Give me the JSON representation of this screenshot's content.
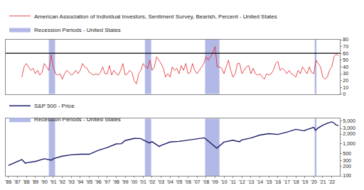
{
  "chart_data": [
    {
      "type": "line",
      "x": [
        1987.5,
        1987.75,
        1988,
        1988.25,
        1988.5,
        1988.75,
        1989,
        1989.25,
        1989.5,
        1989.75,
        1990,
        1990.25,
        1990.5,
        1990.75,
        1991,
        1991.25,
        1991.5,
        1991.75,
        1992,
        1992.25,
        1992.5,
        1992.75,
        1993,
        1993.25,
        1993.5,
        1993.75,
        1994,
        1994.25,
        1994.5,
        1994.75,
        1995,
        1995.25,
        1995.5,
        1995.75,
        1996,
        1996.25,
        1996.5,
        1996.75,
        1997,
        1997.25,
        1997.5,
        1997.75,
        1998,
        1998.25,
        1998.5,
        1998.75,
        1999,
        1999.25,
        1999.5,
        1999.75,
        2000,
        2000.25,
        2000.5,
        2000.75,
        2001,
        2001.25,
        2001.5,
        2001.75,
        2002,
        2002.25,
        2002.5,
        2002.75,
        2003,
        2003.25,
        2003.5,
        2003.75,
        2004,
        2004.25,
        2004.5,
        2004.75,
        2005,
        2005.25,
        2005.5,
        2005.75,
        2006,
        2006.25,
        2006.5,
        2006.75,
        2007,
        2007.25,
        2007.5,
        2007.75,
        2008,
        2008.25,
        2008.5,
        2008.75,
        2009,
        2009.25,
        2009.5,
        2009.75,
        2010,
        2010.25,
        2010.5,
        2010.75,
        2011,
        2011.25,
        2011.5,
        2011.75,
        2012,
        2012.25,
        2012.5,
        2012.75,
        2013,
        2013.25,
        2013.5,
        2013.75,
        2014,
        2014.25,
        2014.5,
        2014.75,
        2015,
        2015.25,
        2015.5,
        2015.75,
        2016,
        2016.25,
        2016.5,
        2016.75,
        2017,
        2017.25,
        2017.5,
        2017.75,
        2018,
        2018.25,
        2018.5,
        2018.75,
        2019,
        2019.25,
        2019.5,
        2019.75,
        2020,
        2020.25,
        2020.5,
        2020.75,
        2021,
        2021.25,
        2021.5,
        2021.75,
        2022,
        2022.25,
        2022.5,
        2022.75
      ],
      "series": [
        {
          "name": "American Association of Individual Investors, Sentiment Survey, Bearish, Percent - United States",
          "color": "#e3242b",
          "values": [
            25,
            40,
            45,
            40,
            35,
            38,
            30,
            35,
            28,
            32,
            45,
            40,
            35,
            58,
            40,
            30,
            28,
            30,
            22,
            30,
            35,
            32,
            28,
            30,
            35,
            30,
            35,
            45,
            40,
            38,
            32,
            30,
            28,
            30,
            28,
            32,
            40,
            30,
            30,
            42,
            28,
            35,
            30,
            28,
            35,
            45,
            28,
            30,
            35,
            32,
            20,
            15,
            30,
            35,
            45,
            40,
            38,
            50,
            35,
            40,
            55,
            50,
            45,
            38,
            25,
            30,
            25,
            40,
            35,
            38,
            30,
            42,
            35,
            45,
            30,
            32,
            45,
            35,
            30,
            35,
            40,
            45,
            55,
            50,
            55,
            60,
            70,
            40,
            40,
            38,
            30,
            40,
            50,
            35,
            25,
            30,
            45,
            45,
            30,
            35,
            40,
            42,
            30,
            38,
            30,
            28,
            30,
            25,
            22,
            30,
            28,
            30,
            35,
            45,
            48,
            35,
            38,
            35,
            30,
            35,
            30,
            28,
            25,
            35,
            30,
            40,
            35,
            30,
            40,
            32,
            30,
            50,
            45,
            40,
            25,
            22,
            25,
            35,
            40,
            55,
            59,
            56
          ]
        }
      ],
      "recessions": {
        "name": "Recession Periods - United States",
        "color": "#b3b9e6",
        "periods": [
          [
            1990.5,
            1991.2
          ],
          [
            2001.2,
            2001.9
          ],
          [
            2007.9,
            2009.5
          ],
          [
            2020.1,
            2020.3
          ]
        ]
      },
      "hline": 60,
      "xlim": [
        1985.7,
        2022.9
      ],
      "ylim": [
        0,
        80
      ],
      "yticks": [
        0,
        10,
        20,
        30,
        40,
        50,
        60,
        70,
        80
      ],
      "grid": false,
      "tick_labels": "y"
    },
    {
      "type": "line",
      "x": [
        1986,
        1987.5,
        1987.9,
        1988,
        1989,
        1990,
        1990.8,
        1991,
        1992,
        1993,
        1994,
        1995,
        1996,
        1997,
        1998,
        1998.6,
        1999,
        2000,
        2000.7,
        2001,
        2001.7,
        2002,
        2002.8,
        2003,
        2004,
        2005,
        2006,
        2007,
        2007.8,
        2008,
        2008.8,
        2009.2,
        2010,
        2011,
        2011.7,
        2012,
        2013,
        2014,
        2015,
        2016,
        2017,
        2018,
        2018.95,
        2019,
        2020,
        2020.2,
        2020.5,
        2021,
        2021.5,
        2022,
        2022.25,
        2022.5,
        2022.75
      ],
      "series": [
        {
          "name": "S&P 500 - Price",
          "color": "#1c1c6b",
          "values": [
            210,
            320,
            245,
            255,
            280,
            340,
            305,
            340,
            410,
            450,
            470,
            470,
            620,
            760,
            980,
            1000,
            1250,
            1460,
            1450,
            1300,
            1050,
            1150,
            820,
            880,
            1130,
            1180,
            1280,
            1420,
            1520,
            1380,
            900,
            720,
            1120,
            1280,
            1150,
            1310,
            1500,
            1850,
            2050,
            1940,
            2280,
            2800,
            2500,
            2600,
            3230,
            2580,
            3100,
            3750,
            4300,
            4770,
            4400,
            3800,
            3700
          ]
        }
      ],
      "recessions": {
        "name": "Recession Periods - United States",
        "color": "#b3b9e6",
        "periods": [
          [
            1990.5,
            1991.2
          ],
          [
            2001.2,
            2001.9
          ],
          [
            2007.9,
            2009.5
          ],
          [
            2020.1,
            2020.3
          ]
        ]
      },
      "log": "y",
      "xlim": [
        1985.7,
        2022.9
      ],
      "xticks": [
        {
          "value": 1986,
          "label": "'86"
        },
        {
          "value": 1987,
          "label": "'87"
        },
        {
          "value": 1988,
          "label": "'88"
        },
        {
          "value": 1989,
          "label": "'89"
        },
        {
          "value": 1990,
          "label": "'90"
        },
        {
          "value": 1991,
          "label": "'91"
        },
        {
          "value": 1992,
          "label": "'92"
        },
        {
          "value": 1993,
          "label": "'93"
        },
        {
          "value": 1994,
          "label": "'94"
        },
        {
          "value": 1995,
          "label": "'95"
        },
        {
          "value": 1996,
          "label": "'96"
        },
        {
          "value": 1997,
          "label": "'97"
        },
        {
          "value": 1998,
          "label": "'98"
        },
        {
          "value": 1999,
          "label": "'99"
        },
        {
          "value": 2000,
          "label": "'00"
        },
        {
          "value": 2001,
          "label": "'01"
        },
        {
          "value": 2002,
          "label": "'02"
        },
        {
          "value": 2003,
          "label": "'03"
        },
        {
          "value": 2004,
          "label": "'04"
        },
        {
          "value": 2005,
          "label": "'05"
        },
        {
          "value": 2006,
          "label": "'06"
        },
        {
          "value": 2007,
          "label": "'07"
        },
        {
          "value": 2008,
          "label": "'08"
        },
        {
          "value": 2009,
          "label": "'09"
        },
        {
          "value": 2010,
          "label": "'10"
        },
        {
          "value": 2011,
          "label": "'11"
        },
        {
          "value": 2012,
          "label": "'12"
        },
        {
          "value": 2013,
          "label": "'13"
        },
        {
          "value": 2014,
          "label": "'14"
        },
        {
          "value": 2015,
          "label": "'15"
        },
        {
          "value": 2016,
          "label": "'16"
        },
        {
          "value": 2017,
          "label": "'17"
        },
        {
          "value": 2018,
          "label": "'18"
        },
        {
          "value": 2019,
          "label": "'19"
        },
        {
          "value": 2020,
          "label": "'20"
        },
        {
          "value": 2021,
          "label": "'21"
        },
        {
          "value": 2022,
          "label": "'22"
        }
      ],
      "ylim": [
        100,
        6000
      ],
      "yticks": [
        100,
        200,
        300,
        500,
        {
          "value": 1000,
          "label": "1,000"
        },
        {
          "value": 2000,
          "label": "2,000"
        },
        {
          "value": 3000,
          "label": "3,000"
        },
        {
          "value": 5000,
          "label": "5,000"
        }
      ],
      "grid": false
    }
  ]
}
